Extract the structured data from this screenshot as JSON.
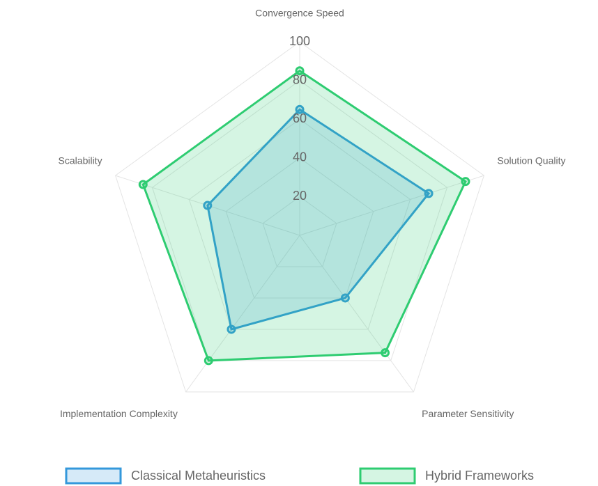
{
  "chart_data": {
    "type": "radar",
    "categories": [
      "Convergence Speed",
      "Solution Quality",
      "Parameter Sensitivity",
      "Implementation Complexity",
      "Scalability"
    ],
    "series": [
      {
        "name": "Classical Metaheuristics",
        "color": "#3498db",
        "values": [
          65,
          70,
          40,
          60,
          50
        ]
      },
      {
        "name": "Hybrid Frameworks",
        "color": "#2ecc71",
        "values": [
          85,
          90,
          75,
          80,
          85
        ]
      }
    ],
    "rlim": [
      0,
      100
    ],
    "rticks": [
      20,
      40,
      60,
      80,
      100
    ],
    "grid": true,
    "legend": "bottom"
  }
}
